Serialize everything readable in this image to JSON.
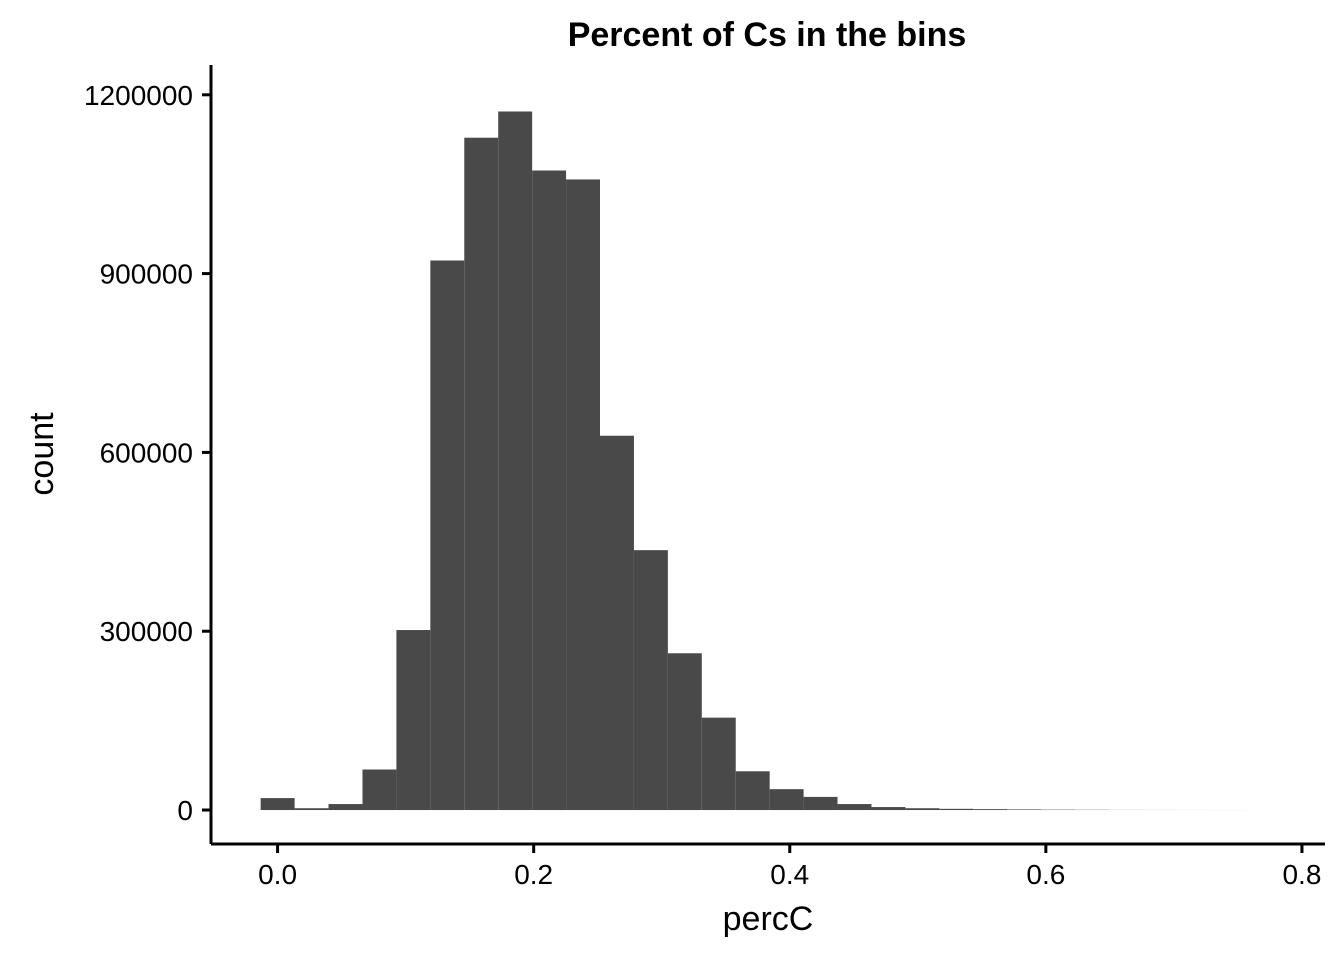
{
  "chart_data": {
    "type": "bar",
    "title": "Percent of Cs in the bins",
    "xlabel": "percC",
    "ylabel": "count",
    "bar_color": "#494949",
    "grid": false,
    "legend": "none",
    "xlim": [
      -0.052,
      0.818
    ],
    "ylim": [
      -57000,
      1250000
    ],
    "x_ticks": [
      0.0,
      0.2,
      0.4,
      0.6,
      0.8
    ],
    "x_tick_labels": [
      "0.0",
      "0.2",
      "0.4",
      "0.6",
      "0.8"
    ],
    "y_ticks": [
      0,
      300000,
      600000,
      900000,
      1200000
    ],
    "y_tick_labels": [
      "0",
      "300000",
      "600000",
      "900000",
      "1200000"
    ],
    "bin_width": 0.0265,
    "bin_start": -0.0132,
    "values": [
      20000,
      3000,
      10000,
      68000,
      302000,
      922000,
      1128000,
      1172000,
      1073000,
      1058000,
      628000,
      436000,
      263000,
      155000,
      65000,
      35000,
      22000,
      10000,
      5000,
      3000,
      2000,
      1500,
      1000,
      600,
      400,
      200,
      150,
      100,
      50,
      20
    ]
  }
}
